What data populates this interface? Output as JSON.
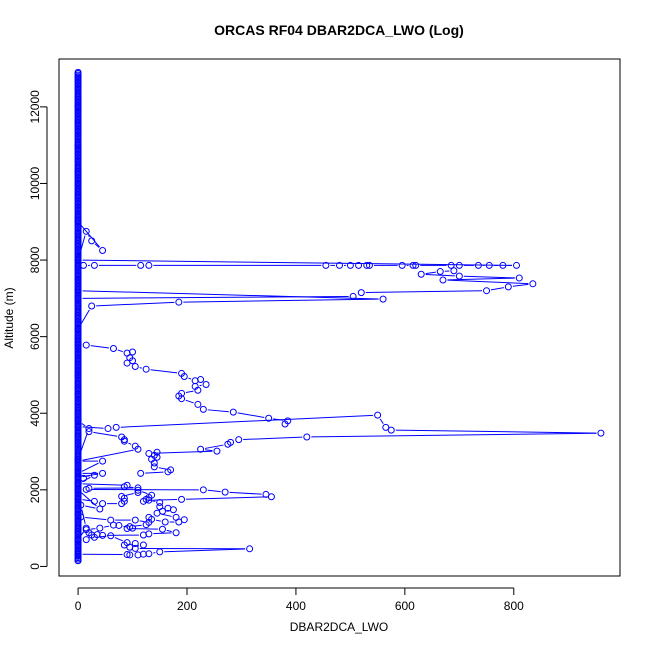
{
  "chart_data": {
    "type": "scatter",
    "title": "ORCAS RF04 DBAR2DCA_LWO (Log)",
    "xlabel": "DBAR2DCA_LWO",
    "ylabel": "Altitude (m)",
    "xlim": [
      -35,
      995
    ],
    "ylim": [
      -250,
      13250
    ],
    "xticks": [
      0,
      200,
      400,
      600,
      800
    ],
    "yticks": [
      0,
      2000,
      4000,
      6000,
      8000,
      10000,
      12000
    ],
    "grid": false,
    "series_color": "#0000ff",
    "series": [
      {
        "style": "points-and-lines",
        "points": [
          [
            0,
            150
          ],
          [
            0,
            400
          ],
          [
            0,
            700
          ],
          [
            15,
            1000
          ],
          [
            5,
            1600
          ],
          [
            40,
            1500
          ],
          [
            0,
            2000
          ],
          [
            10,
            2300
          ],
          [
            0,
            2500
          ],
          [
            0,
            2800
          ],
          [
            20,
            3600
          ],
          [
            0,
            3800
          ],
          [
            0,
            4500
          ],
          [
            0,
            5000
          ],
          [
            0,
            5800
          ],
          [
            0,
            6200
          ],
          [
            25,
            6800
          ],
          [
            185,
            6900
          ],
          [
            560,
            6980
          ],
          [
            0,
            7200
          ],
          [
            0,
            7500
          ],
          [
            0,
            7860
          ],
          [
            10,
            7860
          ],
          [
            30,
            7860
          ],
          [
            115,
            7860
          ],
          [
            130,
            7860
          ],
          [
            455,
            7860
          ],
          [
            480,
            7860
          ],
          [
            500,
            7860
          ],
          [
            515,
            7860
          ],
          [
            530,
            7860
          ],
          [
            535,
            7860
          ],
          [
            595,
            7860
          ],
          [
            615,
            7860
          ],
          [
            620,
            7860
          ],
          [
            685,
            7860
          ],
          [
            700,
            7860
          ],
          [
            735,
            7860
          ],
          [
            755,
            7860
          ],
          [
            780,
            7860
          ],
          [
            805,
            7860
          ],
          [
            0,
            8000
          ],
          [
            15,
            8750
          ],
          [
            25,
            8500
          ],
          [
            45,
            8250
          ],
          [
            0,
            9000
          ],
          [
            0,
            10000
          ],
          [
            0,
            11000
          ],
          [
            0,
            12000
          ],
          [
            0,
            12900
          ]
        ]
      },
      {
        "style": "points-and-lines",
        "points": [
          [
            0,
            7000
          ],
          [
            505,
            7050
          ],
          [
            520,
            7150
          ],
          [
            750,
            7200
          ],
          [
            790,
            7300
          ],
          [
            835,
            7380
          ],
          [
            670,
            7480
          ],
          [
            810,
            7530
          ],
          [
            700,
            7580
          ],
          [
            630,
            7630
          ],
          [
            665,
            7700
          ],
          [
            690,
            7720
          ]
        ]
      },
      {
        "style": "points-and-lines",
        "points": [
          [
            15,
            5780
          ],
          [
            65,
            5690
          ],
          [
            90,
            5570
          ],
          [
            100,
            5600
          ],
          [
            95,
            5450
          ],
          [
            100,
            5370
          ],
          [
            90,
            5310
          ],
          [
            105,
            5220
          ],
          [
            125,
            5150
          ],
          [
            190,
            5040
          ],
          [
            195,
            4960
          ],
          [
            215,
            4850
          ],
          [
            225,
            4880
          ],
          [
            235,
            4750
          ],
          [
            215,
            4700
          ],
          [
            220,
            4600
          ],
          [
            190,
            4520
          ],
          [
            185,
            4450
          ],
          [
            190,
            4380
          ],
          [
            220,
            4230
          ],
          [
            230,
            4100
          ],
          [
            285,
            4030
          ],
          [
            350,
            3870
          ],
          [
            385,
            3800
          ],
          [
            380,
            3720
          ]
        ]
      },
      {
        "style": "points-and-lines",
        "points": [
          [
            0,
            3650
          ],
          [
            55,
            3600
          ],
          [
            70,
            3630
          ],
          [
            550,
            3950
          ],
          [
            565,
            3630
          ],
          [
            575,
            3560
          ],
          [
            960,
            3480
          ],
          [
            420,
            3380
          ],
          [
            295,
            3310
          ],
          [
            280,
            3240
          ],
          [
            275,
            3190
          ],
          [
            225,
            3060
          ],
          [
            255,
            3010
          ],
          [
            130,
            2950
          ],
          [
            145,
            2980
          ],
          [
            140,
            2900
          ],
          [
            145,
            2850
          ],
          [
            135,
            2800
          ],
          [
            140,
            2700
          ],
          [
            140,
            2600
          ],
          [
            170,
            2520
          ],
          [
            165,
            2470
          ],
          [
            115,
            2430
          ]
        ]
      },
      {
        "style": "points-and-lines",
        "points": [
          [
            20,
            3520
          ],
          [
            80,
            3380
          ],
          [
            85,
            3310
          ],
          [
            85,
            3270
          ],
          [
            105,
            3140
          ],
          [
            110,
            3060
          ],
          [
            0,
            2750
          ],
          [
            45,
            2750
          ],
          [
            0,
            2430
          ],
          [
            45,
            2430
          ],
          [
            0,
            2330
          ],
          [
            30,
            2380
          ],
          [
            0,
            2160
          ],
          [
            90,
            2120
          ],
          [
            85,
            2080
          ],
          [
            110,
            2050
          ],
          [
            20,
            2040
          ],
          [
            15,
            2010
          ],
          [
            230,
            2000
          ],
          [
            270,
            1940
          ],
          [
            345,
            1880
          ],
          [
            355,
            1820
          ],
          [
            190,
            1750
          ],
          [
            130,
            1730
          ],
          [
            120,
            1700
          ]
        ]
      },
      {
        "style": "points-and-lines",
        "points": [
          [
            0,
            1760
          ],
          [
            30,
            1700
          ],
          [
            45,
            1640
          ],
          [
            80,
            1640
          ],
          [
            85,
            1700
          ],
          [
            85,
            1780
          ],
          [
            80,
            1830
          ],
          [
            110,
            1930
          ],
          [
            110,
            1990
          ],
          [
            135,
            1860
          ],
          [
            130,
            1800
          ],
          [
            125,
            1750
          ],
          [
            150,
            1670
          ],
          [
            150,
            1560
          ],
          [
            165,
            1520
          ],
          [
            175,
            1480
          ],
          [
            155,
            1440
          ],
          [
            145,
            1390
          ],
          [
            180,
            1280
          ],
          [
            195,
            1220
          ],
          [
            185,
            1160
          ],
          [
            160,
            1160
          ],
          [
            135,
            1230
          ],
          [
            130,
            1280
          ]
        ]
      },
      {
        "style": "points-and-lines",
        "points": [
          [
            0,
            1350
          ],
          [
            5,
            1290
          ],
          [
            60,
            1210
          ],
          [
            105,
            1210
          ],
          [
            130,
            1150
          ],
          [
            125,
            1090
          ],
          [
            95,
            1040
          ],
          [
            90,
            990
          ],
          [
            155,
            970
          ],
          [
            180,
            880
          ],
          [
            130,
            850
          ],
          [
            120,
            820
          ],
          [
            45,
            810
          ],
          [
            35,
            830
          ],
          [
            25,
            820
          ],
          [
            20,
            880
          ],
          [
            15,
            960
          ],
          [
            40,
            1000
          ],
          [
            65,
            1080
          ],
          [
            75,
            1070
          ],
          [
            100,
            1000
          ]
        ]
      },
      {
        "style": "points-and-lines",
        "points": [
          [
            0,
            680
          ],
          [
            15,
            700
          ],
          [
            30,
            760
          ],
          [
            60,
            800
          ],
          [
            90,
            620
          ],
          [
            105,
            600
          ],
          [
            85,
            560
          ],
          [
            95,
            500
          ],
          [
            120,
            560
          ],
          [
            105,
            470
          ],
          [
            315,
            460
          ],
          [
            150,
            380
          ],
          [
            130,
            330
          ],
          [
            120,
            320
          ],
          [
            110,
            300
          ],
          [
            95,
            300
          ],
          [
            90,
            310
          ],
          [
            0,
            320
          ]
        ]
      }
    ]
  }
}
